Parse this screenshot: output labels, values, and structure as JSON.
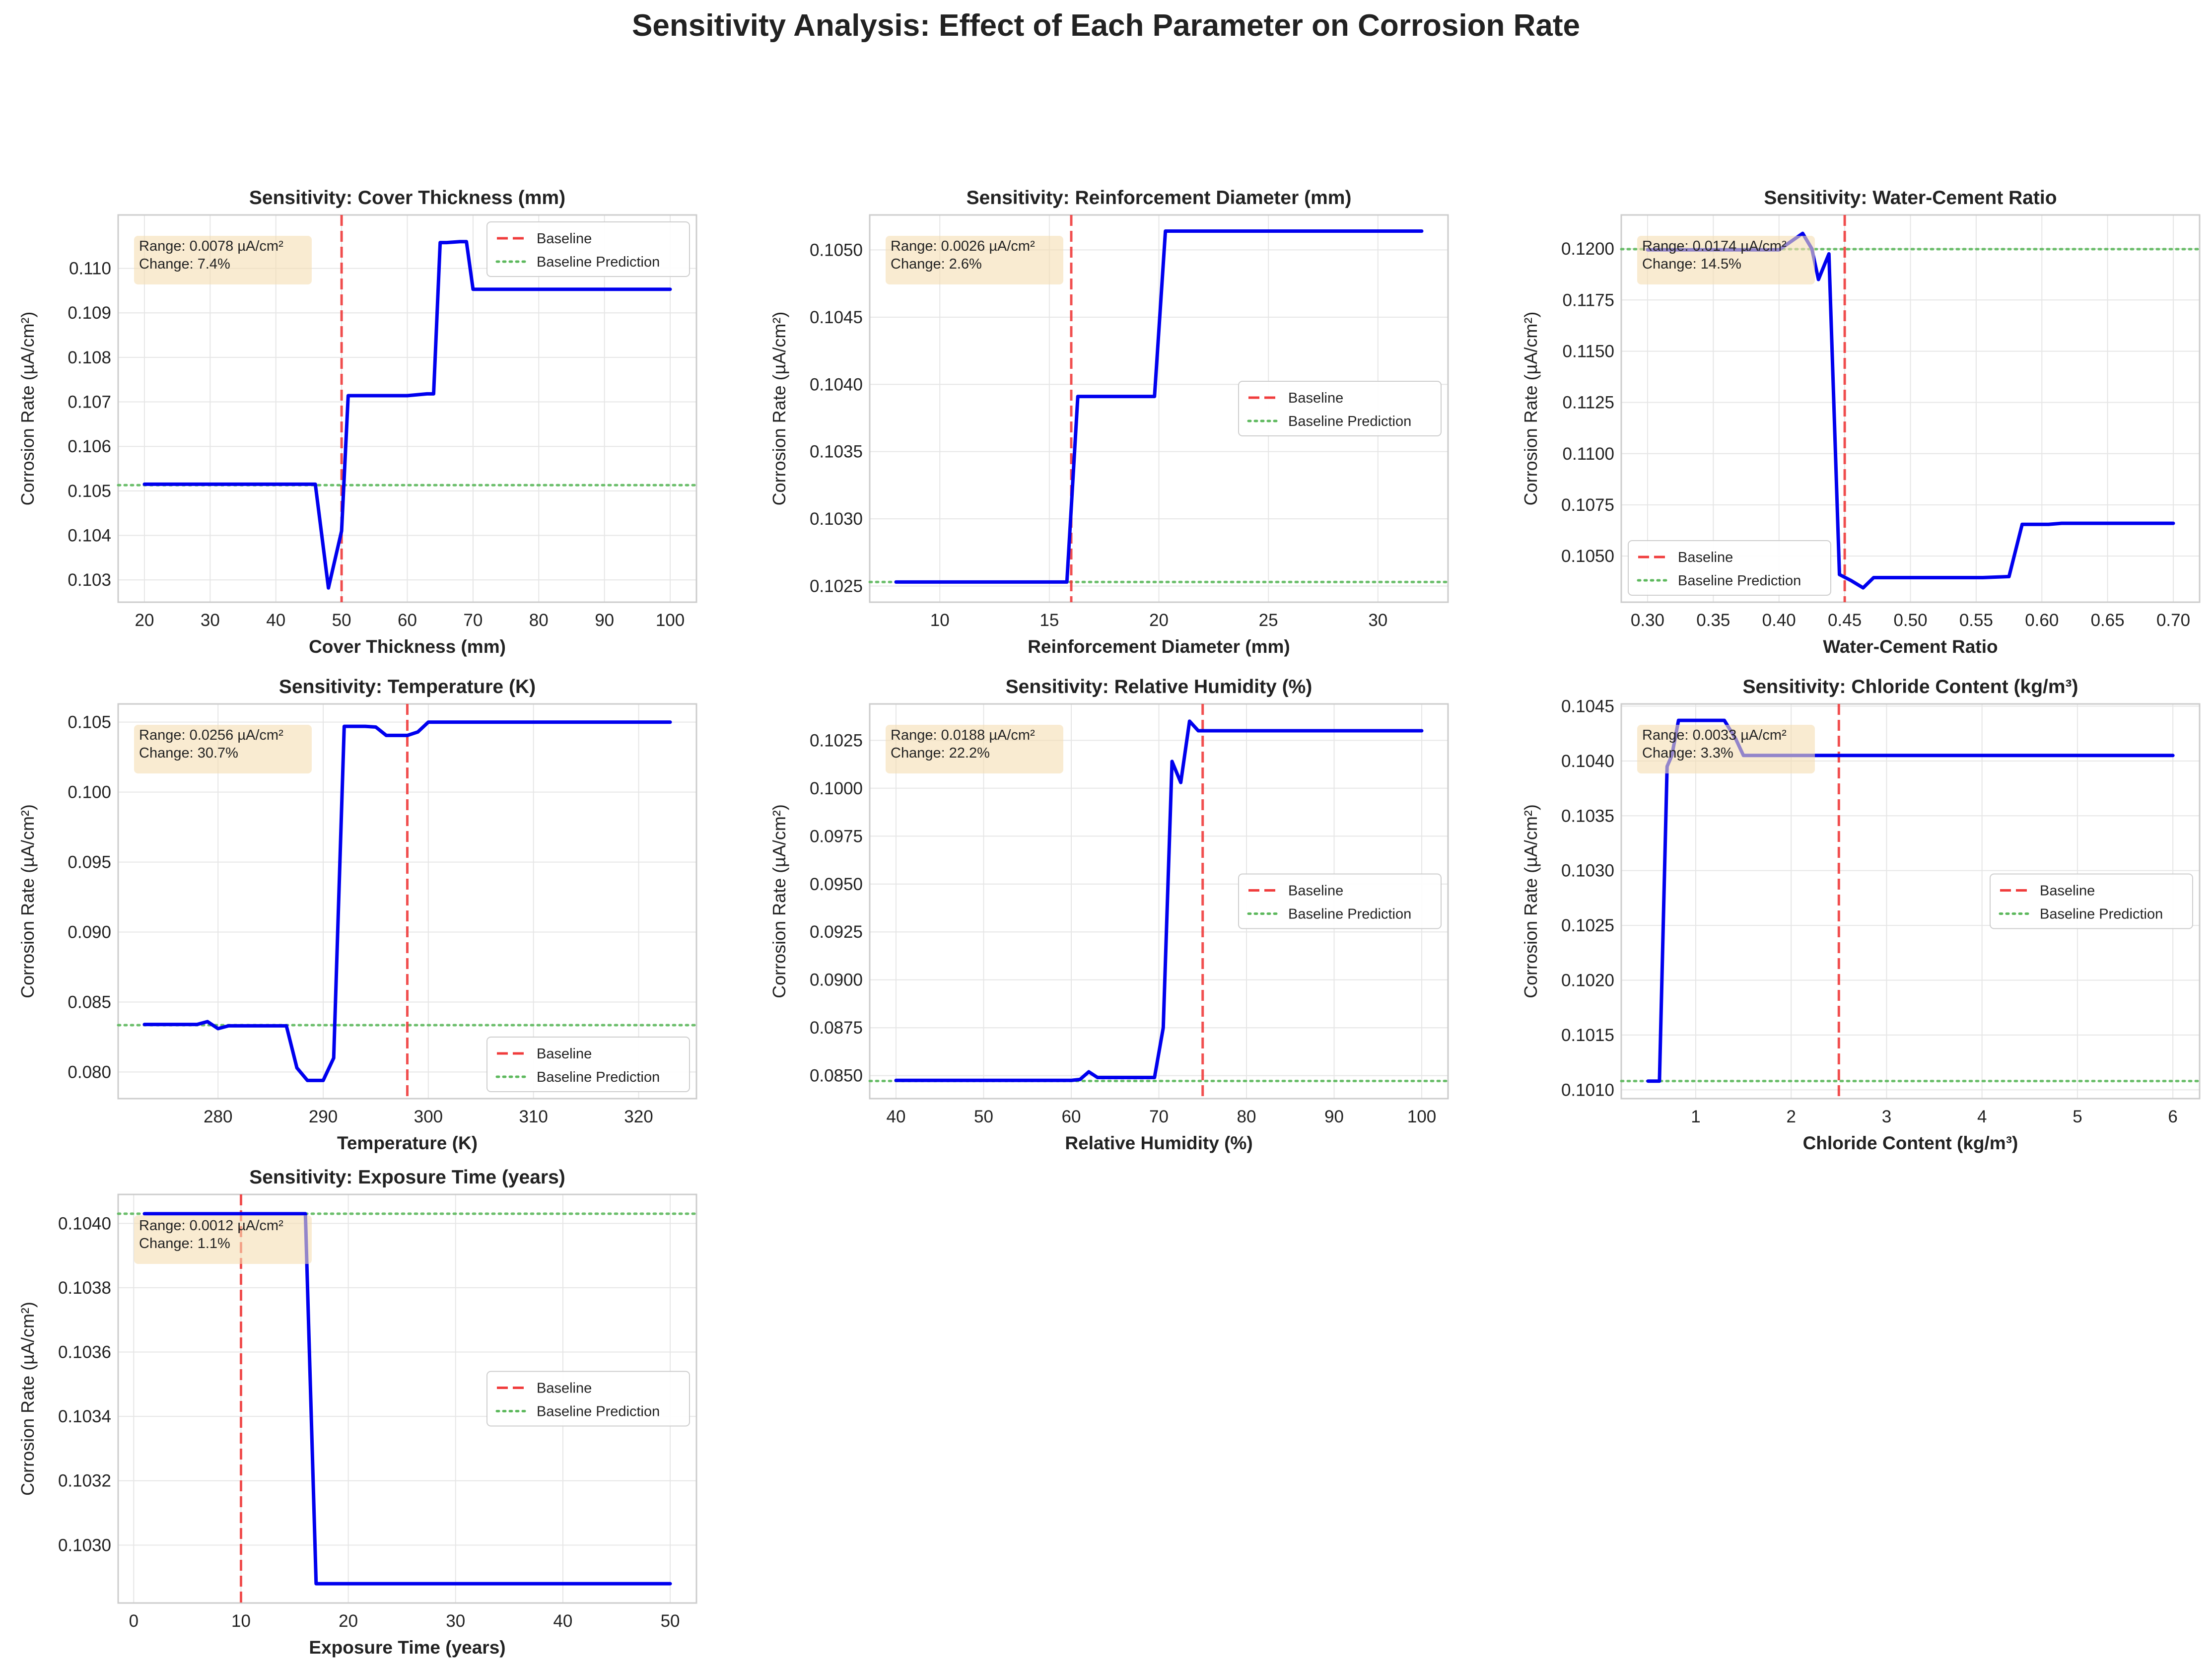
{
  "figure_title": "Sensitivity Analysis: Effect of Each Parameter on Corrosion Rate",
  "colors": {
    "line": "#0000ee",
    "baseline": "#f03c3c",
    "prediction": "#5cb85c",
    "grid": "#e6e6e6",
    "box": "#f5deb3"
  },
  "legend_labels": [
    "Baseline",
    "Baseline Prediction"
  ],
  "chart_data": [
    {
      "type": "line",
      "title": "Sensitivity: Cover Thickness (mm)",
      "xlabel": "Cover Thickness (mm)",
      "ylabel": "Corrosion Rate (µA/cm²)",
      "xlim": [
        16,
        104
      ],
      "ylim": [
        0.1025,
        0.1112
      ],
      "xticks": [
        "20",
        "30",
        "40",
        "50",
        "60",
        "70",
        "80",
        "90",
        "100"
      ],
      "xtick_values": [
        20,
        30,
        40,
        50,
        60,
        70,
        80,
        90,
        100
      ],
      "yticks": [
        "0.103",
        "0.104",
        "0.105",
        "0.106",
        "0.107",
        "0.108",
        "0.109",
        "0.110"
      ],
      "ytick_values": [
        0.103,
        0.104,
        0.105,
        0.106,
        0.107,
        0.108,
        0.109,
        0.11
      ],
      "x": [
        20,
        46,
        48,
        50,
        51,
        60,
        63,
        64,
        65,
        66,
        68,
        69,
        70,
        71,
        100
      ],
      "y": [
        0.10515,
        0.10515,
        0.10282,
        0.1041,
        0.10714,
        0.10714,
        0.10718,
        0.10718,
        0.11058,
        0.11058,
        0.1106,
        0.1106,
        0.10953,
        0.10953,
        0.10953
      ],
      "baseline_x": 50,
      "baseline_prediction": 0.10513,
      "annotation": [
        "Range: 0.0078 µA/cm²",
        "Change: 7.4%"
      ],
      "legend": "top-right"
    },
    {
      "type": "line",
      "title": "Sensitivity: Reinforcement Diameter (mm)",
      "xlabel": "Reinforcement Diameter (mm)",
      "ylabel": "Corrosion Rate (µA/cm²)",
      "xlim": [
        6.8,
        33.2
      ],
      "ylim": [
        0.10238,
        0.10526
      ],
      "xticks": [
        "10",
        "15",
        "20",
        "25",
        "30"
      ],
      "xtick_values": [
        10,
        15,
        20,
        25,
        30
      ],
      "yticks": [
        "0.1025",
        "0.1030",
        "0.1035",
        "0.1040",
        "0.1045",
        "0.1050"
      ],
      "ytick_values": [
        0.1025,
        0.103,
        0.1035,
        0.104,
        0.1045,
        0.105
      ],
      "x": [
        8,
        15.8,
        16.3,
        19.8,
        20.3,
        32
      ],
      "y": [
        0.10253,
        0.10253,
        0.10391,
        0.10391,
        0.10514,
        0.10514
      ],
      "baseline_x": 16,
      "baseline_prediction": 0.10253,
      "annotation": [
        "Range: 0.0026 µA/cm²",
        "Change: 2.6%"
      ],
      "legend": "center-right"
    },
    {
      "type": "line",
      "title": "Sensitivity: Water-Cement Ratio",
      "xlabel": "Water-Cement Ratio",
      "ylabel": "Corrosion Rate (µA/cm²)",
      "xlim": [
        0.28,
        0.72
      ],
      "ylim": [
        0.10275,
        0.12165
      ],
      "xticks": [
        "0.30",
        "0.35",
        "0.40",
        "0.45",
        "0.50",
        "0.55",
        "0.60",
        "0.65",
        "0.70"
      ],
      "xtick_values": [
        0.3,
        0.35,
        0.4,
        0.45,
        0.5,
        0.55,
        0.6,
        0.65,
        0.7
      ],
      "yticks": [
        "0.1050",
        "0.1075",
        "0.1100",
        "0.1125",
        "0.1150",
        "0.1175",
        "0.1200"
      ],
      "ytick_values": [
        0.105,
        0.1075,
        0.11,
        0.1125,
        0.115,
        0.1175,
        0.12
      ],
      "x": [
        0.3,
        0.4,
        0.418,
        0.425,
        0.43,
        0.438,
        0.446,
        0.455,
        0.464,
        0.472,
        0.555,
        0.575,
        0.585,
        0.605,
        0.615,
        0.7
      ],
      "y": [
        0.11995,
        0.11995,
        0.12075,
        0.12,
        0.1185,
        0.11975,
        0.1041,
        0.1038,
        0.10345,
        0.10395,
        0.10395,
        0.104,
        0.10655,
        0.10655,
        0.1066,
        0.1066
      ],
      "baseline_x": 0.45,
      "baseline_prediction": 0.11998,
      "annotation": [
        "Range: 0.0174 µA/cm²",
        "Change: 14.5%"
      ],
      "legend": "lower-left"
    },
    {
      "type": "line",
      "title": "Sensitivity: Temperature (K)",
      "xlabel": "Temperature (K)",
      "ylabel": "Corrosion Rate (µA/cm²)",
      "xlim": [
        270.5,
        325.5
      ],
      "ylim": [
        0.0781,
        0.1063
      ],
      "xticks": [
        "280",
        "290",
        "300",
        "310",
        "320"
      ],
      "xtick_values": [
        280,
        290,
        300,
        310,
        320
      ],
      "yticks": [
        "0.080",
        "0.085",
        "0.090",
        "0.095",
        "0.100",
        "0.105"
      ],
      "ytick_values": [
        0.08,
        0.085,
        0.09,
        0.095,
        0.1,
        0.105
      ],
      "x": [
        273,
        278,
        279,
        280,
        281,
        286.5,
        287.5,
        288.5,
        290,
        291,
        292,
        294,
        295,
        296,
        298,
        299,
        300,
        323
      ],
      "y": [
        0.0834,
        0.0834,
        0.0836,
        0.0831,
        0.0833,
        0.0833,
        0.0803,
        0.0794,
        0.0794,
        0.081,
        0.1047,
        0.1047,
        0.10465,
        0.10405,
        0.10405,
        0.1043,
        0.105,
        0.105
      ],
      "baseline_x": 298,
      "baseline_prediction": 0.08335,
      "annotation": [
        "Range: 0.0256 µA/cm²",
        "Change: 30.7%"
      ],
      "legend": "lower-right"
    },
    {
      "type": "line",
      "title": "Sensitivity: Relative Humidity (%)",
      "xlabel": "Relative Humidity (%)",
      "ylabel": "Corrosion Rate (µA/cm²)",
      "xlim": [
        37,
        103
      ],
      "ylim": [
        0.0838,
        0.1044
      ],
      "xticks": [
        "40",
        "50",
        "60",
        "70",
        "80",
        "90",
        "100"
      ],
      "xtick_values": [
        40,
        50,
        60,
        70,
        80,
        90,
        100
      ],
      "yticks": [
        "0.0850",
        "0.0875",
        "0.0900",
        "0.0925",
        "0.0950",
        "0.0975",
        "0.1000",
        "0.1025"
      ],
      "ytick_values": [
        0.085,
        0.0875,
        0.09,
        0.0925,
        0.095,
        0.0975,
        0.1,
        0.1025
      ],
      "x": [
        40,
        60,
        61,
        62,
        63,
        67,
        69.5,
        70.5,
        71.5,
        72.5,
        73.5,
        74.5,
        75.5,
        76,
        100
      ],
      "y": [
        0.08475,
        0.08475,
        0.0848,
        0.0852,
        0.0849,
        0.0849,
        0.0849,
        0.0875,
        0.1014,
        0.1003,
        0.1035,
        0.103,
        0.103,
        0.103,
        0.103
      ],
      "baseline_x": 75,
      "baseline_prediction": 0.08472,
      "annotation": [
        "Range: 0.0188 µA/cm²",
        "Change: 22.2%"
      ],
      "legend": "center-right"
    },
    {
      "type": "line",
      "title": "Sensitivity: Chloride Content (kg/m³)",
      "xlabel": "Chloride Content (kg/m³)",
      "ylabel": "Corrosion Rate (µA/cm²)",
      "xlim": [
        0.22,
        6.28
      ],
      "ylim": [
        0.10092,
        0.10452
      ],
      "xticks": [
        "1",
        "2",
        "3",
        "4",
        "5",
        "6"
      ],
      "xtick_values": [
        1,
        2,
        3,
        4,
        5,
        6
      ],
      "yticks": [
        "0.1010",
        "0.1015",
        "0.1020",
        "0.1025",
        "0.1030",
        "0.1035",
        "0.1040",
        "0.1045"
      ],
      "ytick_values": [
        0.101,
        0.1015,
        0.102,
        0.1025,
        0.103,
        0.1035,
        0.104,
        0.1045
      ],
      "x": [
        0.5,
        0.62,
        0.7,
        0.75,
        0.82,
        0.9,
        1.3,
        1.42,
        1.5,
        6
      ],
      "y": [
        0.10108,
        0.10108,
        0.10395,
        0.10405,
        0.10437,
        0.10437,
        0.10437,
        0.1042,
        0.10405,
        0.10405
      ],
      "baseline_x": 2.5,
      "baseline_prediction": 0.10108,
      "annotation": [
        "Range: 0.0033 µA/cm²",
        "Change: 3.3%"
      ],
      "legend": "center-right"
    },
    {
      "type": "line",
      "title": "Sensitivity: Exposure Time (years)",
      "xlabel": "Exposure Time (years)",
      "ylabel": "Corrosion Rate (µA/cm²)",
      "xlim": [
        -1.45,
        52.45
      ],
      "ylim": [
        0.10282,
        0.10409
      ],
      "xticks": [
        "0",
        "10",
        "20",
        "30",
        "40",
        "50"
      ],
      "xtick_values": [
        0,
        10,
        20,
        30,
        40,
        50
      ],
      "yticks": [
        "0.1030",
        "0.1032",
        "0.1034",
        "0.1036",
        "0.1038",
        "0.1040"
      ],
      "ytick_values": [
        0.103,
        0.1032,
        0.1034,
        0.1036,
        0.1038,
        0.104
      ],
      "x": [
        1,
        16,
        17,
        50
      ],
      "y": [
        0.10403,
        0.10403,
        0.10288,
        0.10288
      ],
      "baseline_x": 10,
      "baseline_prediction": 0.10403,
      "annotation": [
        "Range: 0.0012 µA/cm²",
        "Change: 1.1%"
      ],
      "legend": "center-right"
    }
  ]
}
